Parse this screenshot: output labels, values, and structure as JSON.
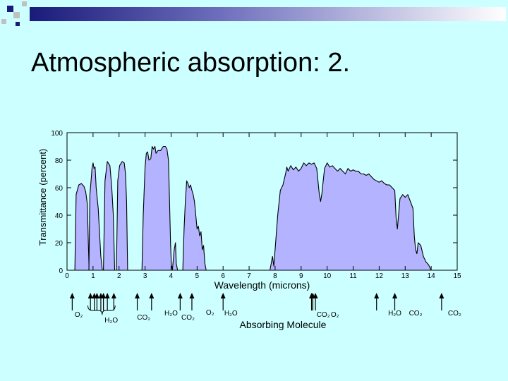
{
  "slide": {
    "title": "Atmospheric absorption: 2."
  },
  "colors": {
    "background": "#ccffff",
    "fill": "#b3b3ff",
    "stroke": "#000000",
    "deco_navy": "#1a1a7a",
    "deco_gray": "#c0c0c0"
  },
  "chart_data": {
    "type": "area",
    "xlabel": "Wavelength (microns)",
    "ylabel": "Transmittance (percent)",
    "xlim": [
      0,
      15
    ],
    "ylim": [
      0,
      100
    ],
    "x_ticks": [
      "0",
      "1",
      "2",
      "3",
      "4",
      "5",
      "6",
      "7",
      "8",
      "9",
      "10",
      "11",
      "12",
      "13",
      "14",
      "15"
    ],
    "y_ticks": [
      "0",
      "20",
      "40",
      "60",
      "80",
      "100"
    ],
    "grid": false,
    "bands": [
      {
        "points": [
          [
            0.3,
            0
          ],
          [
            0.35,
            55
          ],
          [
            0.45,
            62
          ],
          [
            0.55,
            63
          ],
          [
            0.65,
            61
          ],
          [
            0.72,
            57
          ],
          [
            0.78,
            48
          ],
          [
            0.82,
            20
          ],
          [
            0.85,
            0
          ]
        ]
      },
      {
        "points": [
          [
            0.84,
            0
          ],
          [
            0.88,
            55
          ],
          [
            0.92,
            64
          ],
          [
            0.96,
            74
          ],
          [
            1.0,
            78
          ],
          [
            1.04,
            74
          ],
          [
            1.08,
            75
          ],
          [
            1.12,
            60
          ],
          [
            1.2,
            45
          ],
          [
            1.3,
            10
          ],
          [
            1.36,
            0
          ]
        ]
      },
      {
        "points": [
          [
            1.4,
            0
          ],
          [
            1.46,
            65
          ],
          [
            1.55,
            79
          ],
          [
            1.65,
            76
          ],
          [
            1.72,
            60
          ],
          [
            1.78,
            40
          ],
          [
            1.83,
            0
          ]
        ]
      },
      {
        "points": [
          [
            1.9,
            0
          ],
          [
            1.95,
            65
          ],
          [
            2.02,
            76
          ],
          [
            2.12,
            79
          ],
          [
            2.2,
            78
          ],
          [
            2.25,
            70
          ],
          [
            2.29,
            50
          ],
          [
            2.33,
            0
          ]
        ]
      },
      {
        "points": [
          [
            2.88,
            0
          ],
          [
            2.93,
            40
          ],
          [
            3.0,
            75
          ],
          [
            3.05,
            85
          ],
          [
            3.1,
            86
          ],
          [
            3.15,
            80
          ],
          [
            3.22,
            81
          ],
          [
            3.27,
            90
          ],
          [
            3.32,
            88
          ],
          [
            3.38,
            90
          ],
          [
            3.42,
            85
          ],
          [
            3.5,
            87
          ],
          [
            3.6,
            87
          ],
          [
            3.7,
            90
          ],
          [
            3.78,
            90
          ],
          [
            3.84,
            88
          ],
          [
            3.9,
            80
          ],
          [
            3.94,
            50
          ],
          [
            3.98,
            20
          ],
          [
            4.01,
            5
          ],
          [
            4.05,
            0
          ],
          [
            4.12,
            15
          ],
          [
            4.17,
            20
          ],
          [
            4.2,
            5
          ],
          [
            4.25,
            0
          ]
        ]
      },
      {
        "points": [
          [
            4.45,
            0
          ],
          [
            4.5,
            30
          ],
          [
            4.55,
            50
          ],
          [
            4.6,
            65
          ],
          [
            4.65,
            63
          ],
          [
            4.7,
            60
          ],
          [
            4.75,
            62
          ],
          [
            4.8,
            58
          ],
          [
            4.85,
            55
          ],
          [
            4.9,
            50
          ],
          [
            4.95,
            40
          ],
          [
            5.0,
            30
          ],
          [
            5.05,
            32
          ],
          [
            5.1,
            25
          ],
          [
            5.15,
            28
          ],
          [
            5.2,
            15
          ],
          [
            5.25,
            18
          ],
          [
            5.3,
            5
          ],
          [
            5.35,
            0
          ]
        ]
      },
      {
        "points": [
          [
            7.8,
            0
          ],
          [
            7.85,
            5
          ],
          [
            7.9,
            10
          ],
          [
            7.95,
            3
          ],
          [
            8.0,
            15
          ],
          [
            8.1,
            40
          ],
          [
            8.2,
            58
          ],
          [
            8.3,
            62
          ],
          [
            8.4,
            70
          ],
          [
            8.45,
            75
          ],
          [
            8.5,
            72
          ],
          [
            8.55,
            74
          ],
          [
            8.6,
            76
          ],
          [
            8.7,
            73
          ],
          [
            8.8,
            75
          ],
          [
            8.9,
            72
          ],
          [
            9.0,
            74
          ],
          [
            9.1,
            78
          ],
          [
            9.2,
            76
          ],
          [
            9.3,
            78
          ],
          [
            9.4,
            77
          ],
          [
            9.5,
            78
          ],
          [
            9.6,
            74
          ],
          [
            9.7,
            55
          ],
          [
            9.75,
            50
          ],
          [
            9.8,
            56
          ],
          [
            9.85,
            65
          ],
          [
            9.9,
            74
          ],
          [
            10.0,
            78
          ],
          [
            10.1,
            75
          ],
          [
            10.2,
            76
          ],
          [
            10.3,
            74
          ],
          [
            10.4,
            72
          ],
          [
            10.5,
            74
          ],
          [
            10.6,
            72
          ],
          [
            10.7,
            70
          ],
          [
            10.8,
            74
          ],
          [
            10.9,
            72
          ],
          [
            11.0,
            73
          ],
          [
            11.1,
            72
          ],
          [
            11.2,
            72
          ],
          [
            11.3,
            70
          ],
          [
            11.4,
            70
          ],
          [
            11.5,
            69
          ],
          [
            11.6,
            70
          ],
          [
            11.7,
            68
          ],
          [
            11.8,
            66
          ],
          [
            11.9,
            65
          ],
          [
            12.0,
            64
          ],
          [
            12.1,
            65
          ],
          [
            12.2,
            63
          ],
          [
            12.3,
            62
          ],
          [
            12.4,
            62
          ],
          [
            12.5,
            60
          ],
          [
            12.6,
            58
          ],
          [
            12.65,
            38
          ],
          [
            12.7,
            30
          ],
          [
            12.8,
            52
          ],
          [
            12.9,
            55
          ],
          [
            13.0,
            53
          ],
          [
            13.1,
            55
          ],
          [
            13.2,
            50
          ],
          [
            13.3,
            45
          ],
          [
            13.35,
            25
          ],
          [
            13.4,
            15
          ],
          [
            13.45,
            12
          ],
          [
            13.5,
            20
          ],
          [
            13.6,
            18
          ],
          [
            13.7,
            10
          ],
          [
            13.8,
            6
          ],
          [
            13.9,
            4
          ],
          [
            14.0,
            0
          ]
        ]
      }
    ],
    "molecules_label": "Absorbing Molecule",
    "molecule_labels": [
      "O₂",
      "H₂O",
      "CO₂",
      "H₂O",
      "CO₂",
      "O₂",
      "H₂O",
      "CO₂",
      "O₂",
      "H₂O",
      "CO₂",
      "CO₂"
    ],
    "molecule_label_x": [
      0.45,
      1.7,
      2.95,
      4.0,
      4.65,
      5.5,
      6.3,
      9.85,
      10.3,
      12.6,
      13.4,
      14.9
    ],
    "arrow_x": [
      0.2,
      0.9,
      1.05,
      1.15,
      1.3,
      1.4,
      1.55,
      1.8,
      2.7,
      3.25,
      4.35,
      4.8,
      6.0,
      9.4,
      9.45,
      9.55,
      11.9,
      12.6,
      14.4
    ]
  }
}
